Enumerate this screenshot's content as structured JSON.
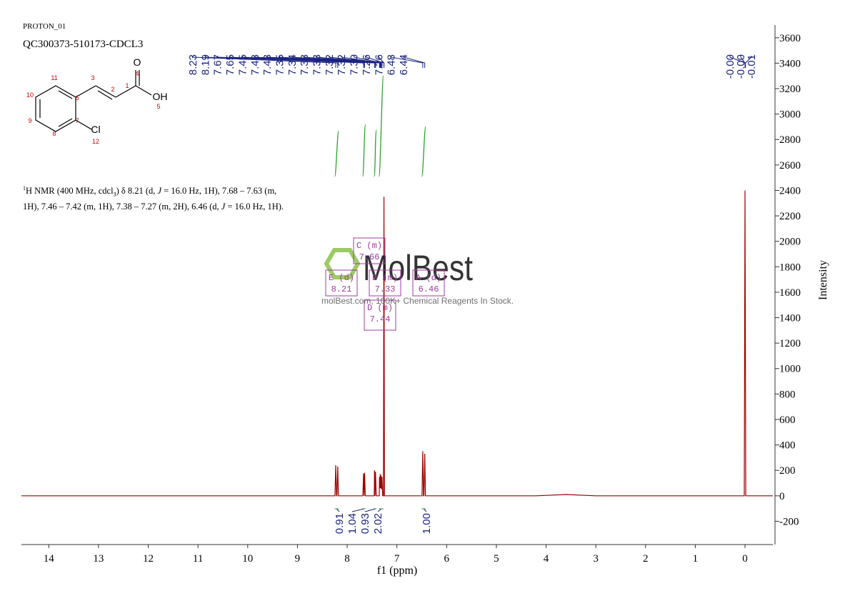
{
  "chart_data": {
    "type": "nmr",
    "header": [
      "PROTON_01",
      "QC300373-510173-CDCL3"
    ],
    "xlabel": "f1 (ppm)",
    "ylabel": "Intensity",
    "xlim": [
      14.55,
      -0.56
    ],
    "ylim": [
      -383,
      3700
    ],
    "xticks": [
      14,
      13,
      12,
      11,
      10,
      9,
      8,
      7,
      6,
      5,
      4,
      3,
      2,
      1,
      0
    ],
    "yticks": [
      -200,
      0,
      200,
      400,
      600,
      800,
      1000,
      1200,
      1400,
      1600,
      1800,
      2000,
      2200,
      2400,
      2600,
      2800,
      3000,
      3200,
      3400,
      3600
    ],
    "color": "#a00000",
    "x": [
      14.55,
      8.245,
      8.23,
      8.215,
      8.205,
      8.19,
      8.175,
      7.685,
      7.67,
      7.66,
      7.65,
      7.635,
      7.455,
      7.45,
      7.44,
      7.43,
      7.415,
      7.355,
      7.35,
      7.34,
      7.335,
      7.325,
      7.32,
      7.31,
      7.3,
      7.285,
      7.27,
      7.26,
      7.25,
      6.495,
      6.48,
      6.465,
      6.455,
      6.44,
      6.425,
      4.2,
      3.6,
      3.0,
      0.015,
      0,
      -0.015,
      -0.56
    ],
    "values": [
      0,
      0,
      240,
      0,
      0,
      230,
      0,
      0,
      175,
      0,
      180,
      0,
      0,
      200,
      0,
      190,
      0,
      0,
      150,
      60,
      170,
      60,
      160,
      50,
      150,
      0,
      0,
      2350,
      0,
      0,
      350,
      0,
      0,
      330,
      0,
      0,
      10,
      0,
      0,
      2400,
      0,
      0
    ],
    "peak_labels": [
      8.23,
      8.19,
      7.67,
      7.65,
      7.45,
      7.43,
      7.43,
      7.35,
      7.34,
      7.33,
      7.33,
      7.32,
      7.32,
      {
        "value": 7.3,
        "label": "7.30"
      },
      7.26,
      7.26,
      6.48,
      6.44,
      {
        "value": 0,
        "label": "-0.00"
      },
      {
        "value": 0,
        "label": "-0.00"
      },
      -0.01
    ],
    "integrals": {
      "color": "#2ca02c",
      "values": [
        0.91,
        1.04,
        0.93,
        2.02,
        {
          "value": 1,
          "label": "1.00"
        }
      ],
      "ranges": [
        [
          8.25,
          8.17
        ],
        [
          7.69,
          7.63
        ],
        [
          7.46,
          7.41
        ],
        [
          7.36,
          7.27
        ],
        [
          6.5,
          6.42
        ]
      ]
    },
    "multiplets": [
      {
        "name": "E (d)",
        "shift": 8.21
      },
      {
        "name": "B (m)",
        "shift": 7.33
      },
      {
        "name": "A (d)",
        "shift": 6.46
      },
      {
        "name": "C (m)",
        "shift": 7.66
      },
      {
        "name": "D (m)",
        "shift": 7.44
      }
    ],
    "description": [
      "1",
      "H NMR (400 MHz, cdcl",
      "3",
      ") δ 8.21 (d, ",
      "J",
      " = 16.0 Hz, 1H), 7.68 – 7.63 (m, 1H), 7.46 – 7.42 (m, 1H), 7.38 – 7.27 (m, 2H), 6.46 (d, ",
      "J",
      " = 16.0 Hz, 1H)."
    ],
    "structure": {
      "labels": [
        "O",
        "4",
        "1",
        "OH",
        "5",
        "2",
        "3",
        "11",
        "6",
        "10",
        "9",
        "7",
        "8",
        "Cl",
        "12"
      ]
    },
    "watermark": {
      "logo": "MolBest",
      "text": "molBest.com, 100K+ Chemical Reagents In Stock."
    }
  }
}
